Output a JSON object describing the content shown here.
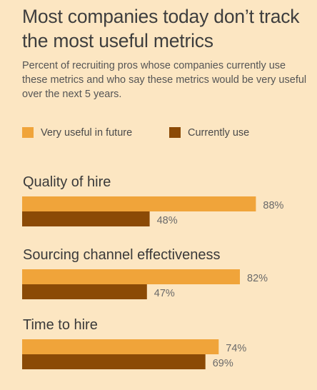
{
  "title": "Most companies today don’t track the most useful metrics",
  "subtitle": "Percent of recruiting pros whose companies currently use these metrics and who say these metrics would be very useful over the next 5 years.",
  "legend": {
    "future_label": "Very useful in future",
    "current_label": "Currently use"
  },
  "colors": {
    "background": "#fce6c2",
    "future": "#f0a43a",
    "current": "#8b4a06"
  },
  "chart_data": {
    "type": "bar",
    "orientation": "horizontal",
    "categories": [
      "Quality of hire",
      "Sourcing channel effectiveness",
      "Time to hire"
    ],
    "series": [
      {
        "name": "Very useful in future",
        "values": [
          88,
          82,
          74
        ]
      },
      {
        "name": "Currently use",
        "values": [
          48,
          47,
          69
        ]
      }
    ],
    "value_labels": [
      [
        "88%",
        "82%",
        "74%"
      ],
      [
        "48%",
        "47%",
        "69%"
      ]
    ],
    "xlim": [
      0,
      100
    ],
    "grid": false,
    "legend_position": "top"
  }
}
